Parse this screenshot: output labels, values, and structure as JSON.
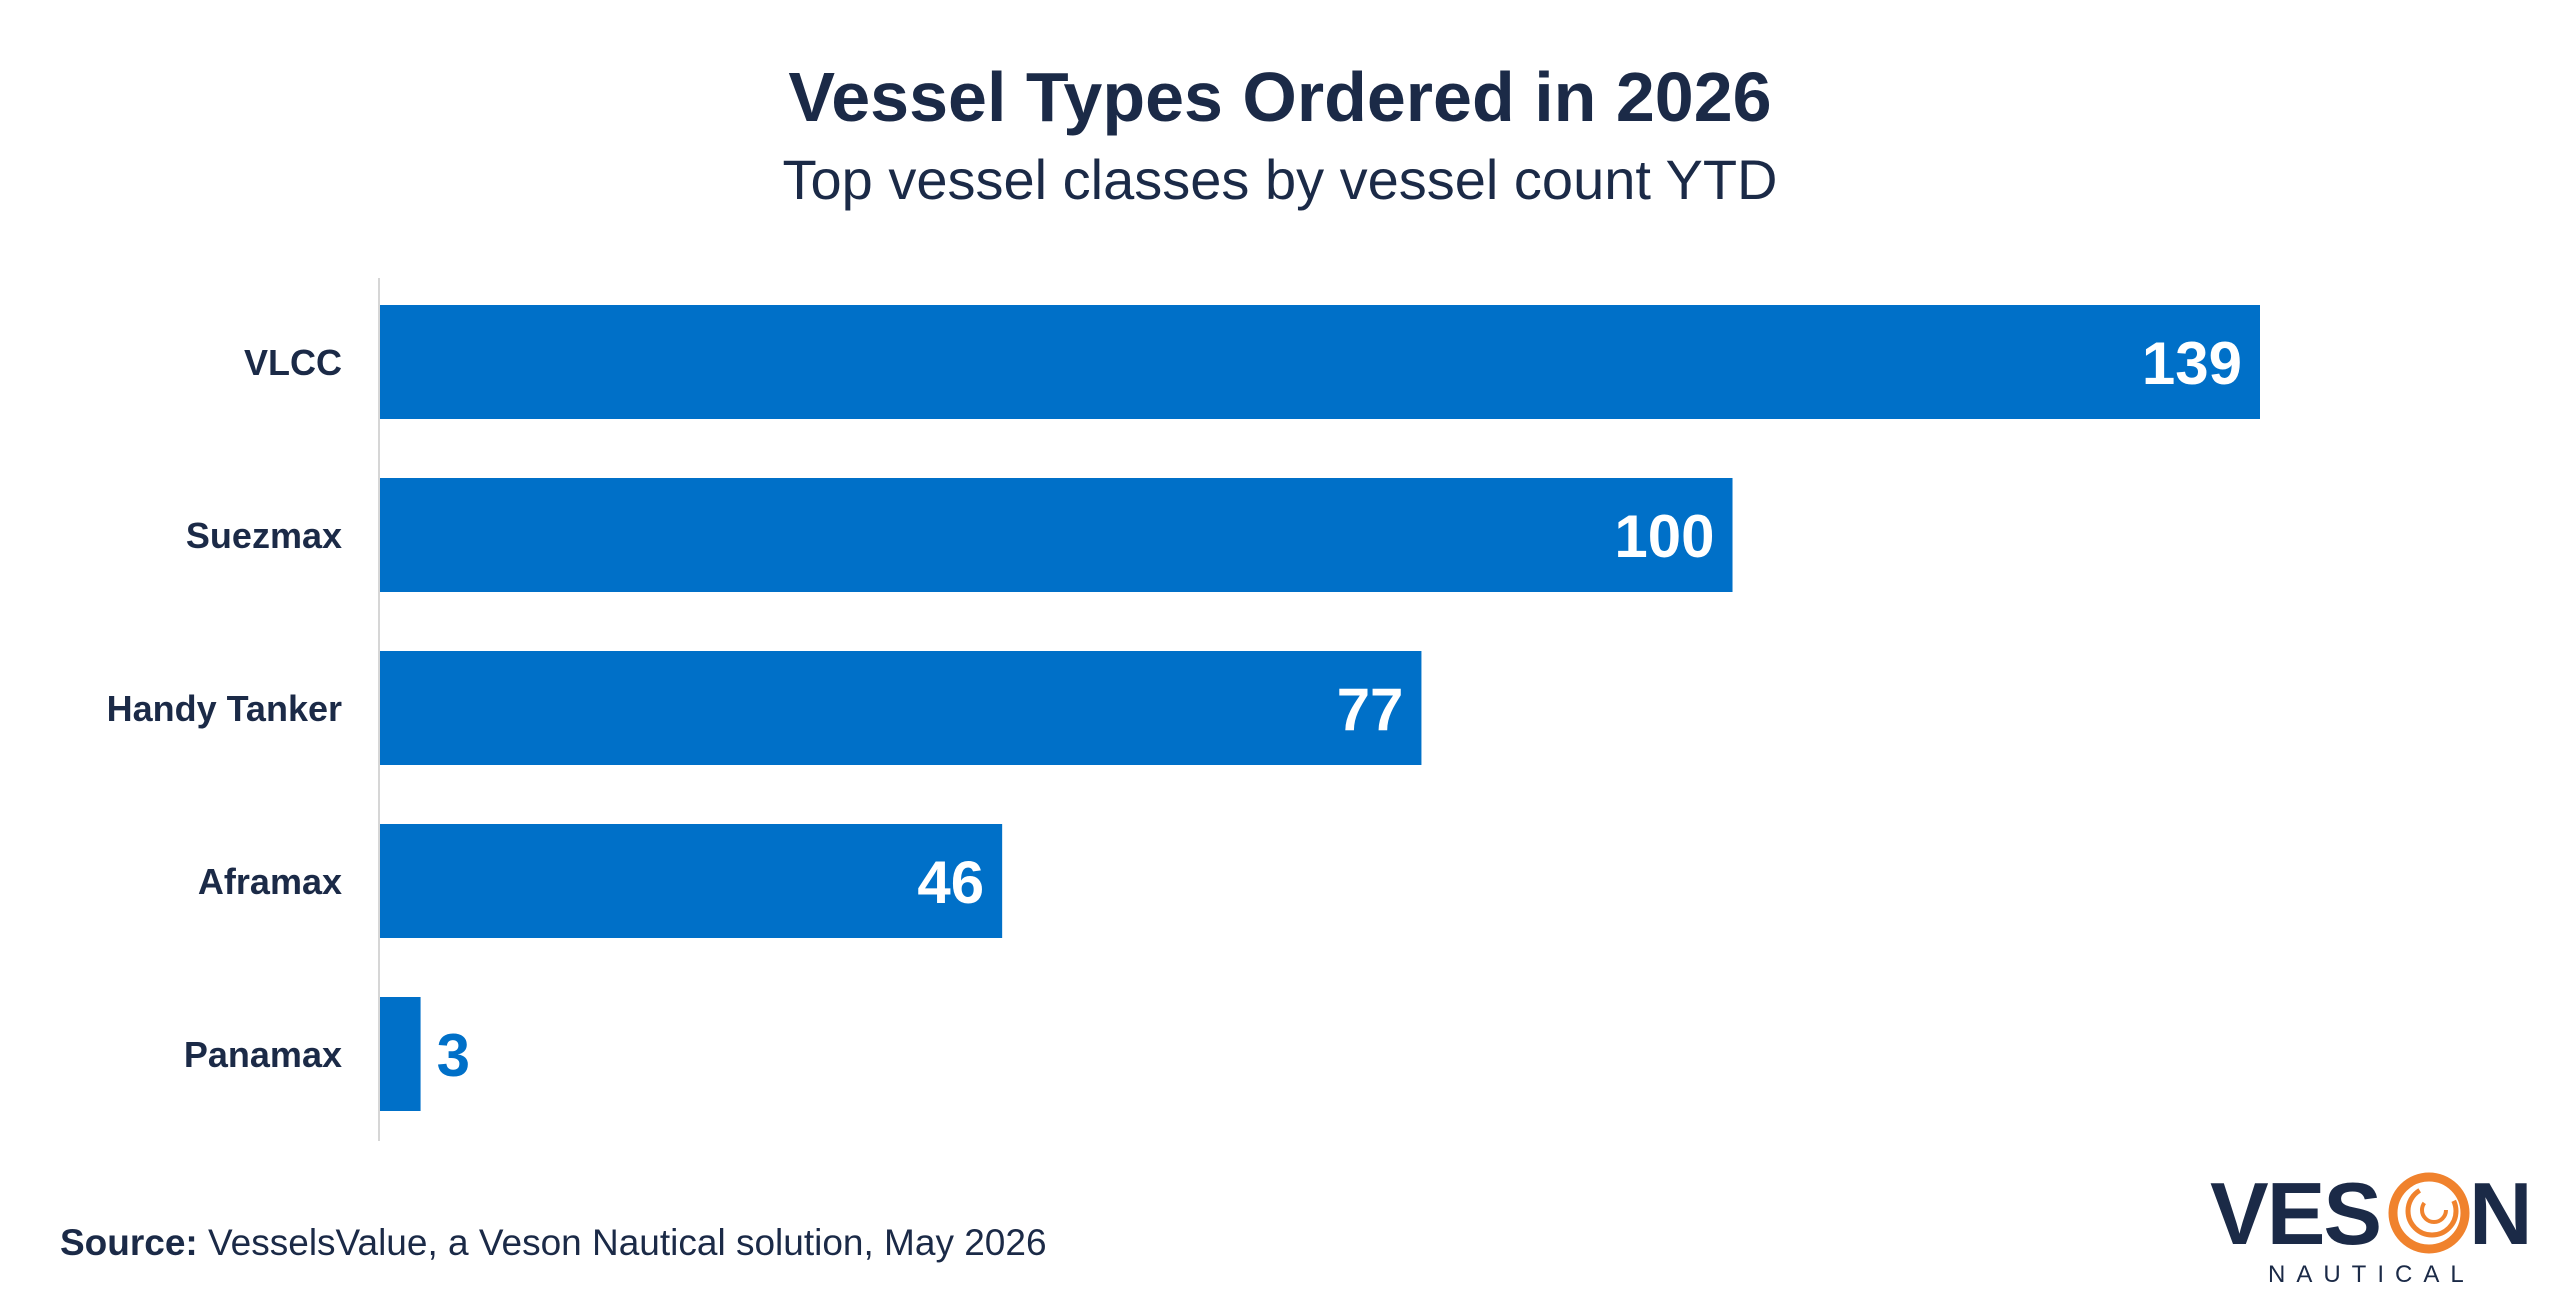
{
  "chart_data": {
    "type": "bar",
    "orientation": "horizontal",
    "title": "Vessel Types Ordered in 2026",
    "subtitle": "Top vessel classes by vessel count YTD",
    "categories": [
      "VLCC",
      "Suezmax",
      "Handy Tanker",
      "Aframax",
      "Panamax"
    ],
    "values": [
      139,
      100,
      77,
      46,
      3
    ],
    "xlim": [
      0,
      139
    ],
    "grid": false,
    "legend": "none",
    "bar_color": "#0070c8",
    "data_label_inside_color": "#ffffff",
    "data_label_outside_color": "#0070c8"
  },
  "source": {
    "label": "Source:",
    "text": "VesselsValue, a Veson Nautical solution, May 2026"
  },
  "logo": {
    "word": "VESON",
    "sub": "NAUTICAL",
    "accent_color": "#f0822d",
    "text_color": "#1b2a47"
  },
  "colors": {
    "text": "#1b2a47",
    "axis_line": "#d6d6d6"
  }
}
